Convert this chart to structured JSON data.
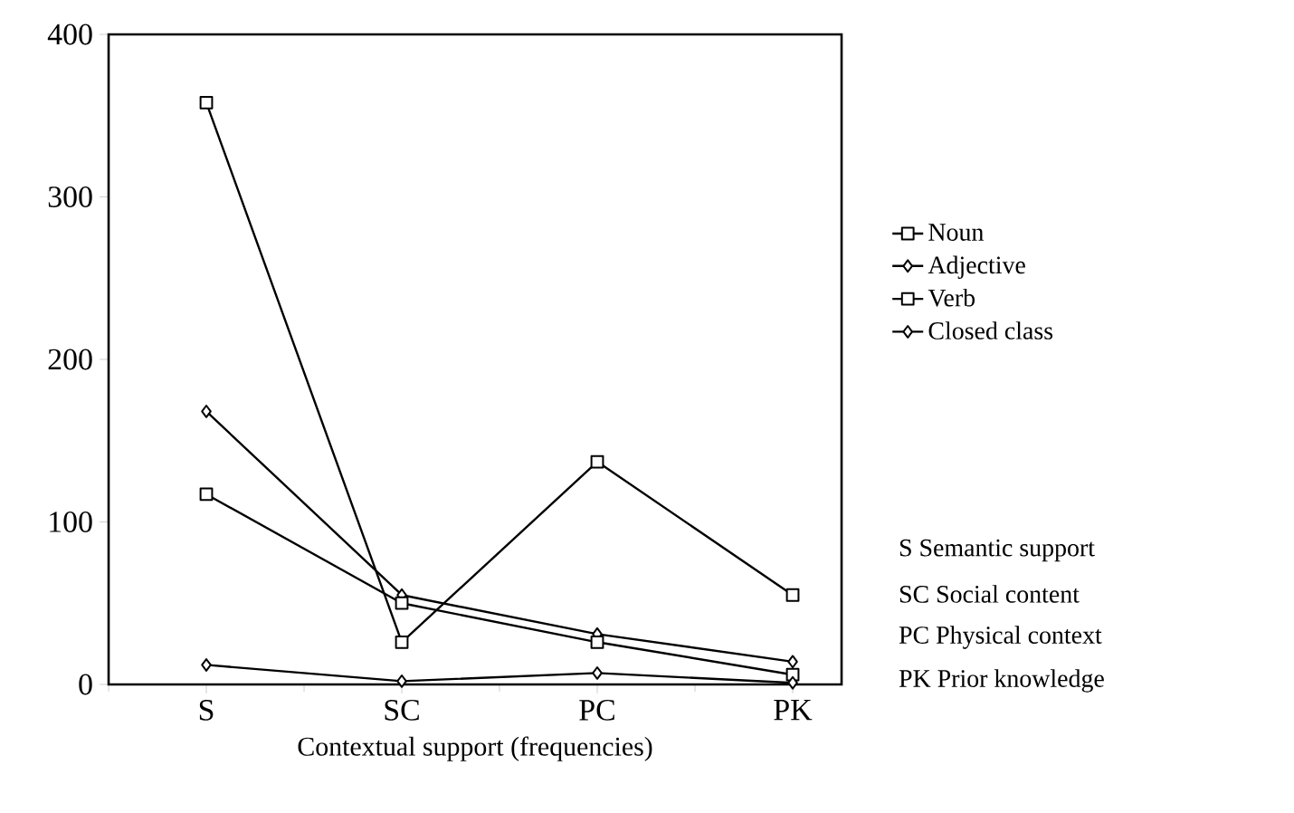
{
  "chart_data": {
    "type": "line",
    "xlabel": "Contextual support (frequencies)",
    "categories": [
      "S",
      "SC",
      "PC",
      "PK"
    ],
    "series": [
      {
        "name": "Noun",
        "color": "#000000",
        "marker": "square",
        "values": [
          358,
          26,
          137,
          55
        ]
      },
      {
        "name": "Adjective",
        "color": "#000000",
        "marker": "diamond",
        "values": [
          168,
          55,
          31,
          14
        ]
      },
      {
        "name": "Verb",
        "color": "#000000",
        "marker": "square",
        "values": [
          117,
          50,
          26,
          6
        ]
      },
      {
        "name": "Closed class",
        "color": "#000000",
        "marker": "diamond",
        "values": [
          12,
          2,
          7,
          1
        ]
      }
    ],
    "ylim": [
      0,
      400
    ],
    "yticks": [
      0,
      100,
      200,
      300,
      400
    ],
    "grid": false,
    "legend": "right",
    "line_style": "solid",
    "annotations": [
      "S Semantic support",
      "SC Social content",
      "PC Physical context",
      "PK Prior knowledge"
    ]
  }
}
